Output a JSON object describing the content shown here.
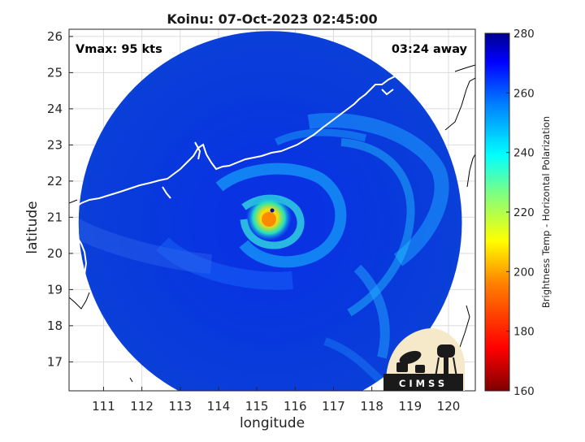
{
  "title": "Koinu: 07-Oct-2023 02:45:00",
  "annotations": {
    "vmax": "Vmax: 95 kts",
    "time_away": "03:24 away"
  },
  "axes": {
    "xlabel": "longitude",
    "ylabel": "latitude",
    "xlim": [
      110.1,
      120.7
    ],
    "ylim": [
      16.2,
      26.2
    ],
    "xticks": [
      111,
      112,
      113,
      114,
      115,
      116,
      117,
      118,
      119,
      120
    ],
    "yticks": [
      17,
      18,
      19,
      20,
      21,
      22,
      23,
      24,
      25,
      26
    ],
    "grid": true
  },
  "colorbar": {
    "label": "Brightness Temp - Horizontal Polarization",
    "range": [
      160,
      280
    ],
    "ticks": [
      160,
      180,
      200,
      220,
      240,
      260,
      280
    ],
    "colormap": [
      "#7f0000",
      "#ff0000",
      "#ff8000",
      "#ffff00",
      "#80ff80",
      "#00ffff",
      "#0080ff",
      "#0000ff",
      "#00008f"
    ]
  },
  "storm_center": {
    "lon": 115.4,
    "lat": 21.1,
    "eye_min_temp": 195
  },
  "swath": {
    "center_lon": 115.35,
    "center_lat": 20.85,
    "radius_deg": 5.0
  },
  "logo": {
    "text": "CIMSS"
  },
  "colors": {
    "coastline": "#ffffff",
    "land_edge": "#000000",
    "background": "#ffffff"
  }
}
